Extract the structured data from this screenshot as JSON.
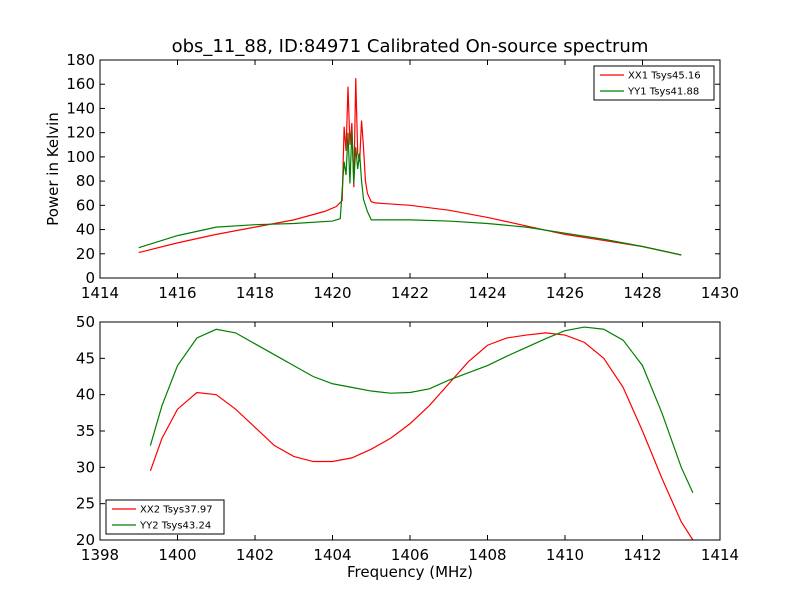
{
  "chart_data": [
    {
      "type": "line",
      "title": "obs_11_88, ID:84971 Calibrated On-source spectrum",
      "xlabel": "",
      "ylabel": "Power in Kelvin",
      "xlim": [
        1414,
        1430
      ],
      "ylim": [
        0,
        180
      ],
      "xticks": [
        1414,
        1416,
        1418,
        1420,
        1422,
        1424,
        1426,
        1428,
        1430
      ],
      "yticks": [
        0,
        20,
        40,
        60,
        80,
        100,
        120,
        140,
        160,
        180
      ],
      "grid": false,
      "legend_position": "top-right",
      "series": [
        {
          "name": "XX1 Tsys45.16",
          "color": "#ff0000",
          "x": [
            1415.0,
            1416.0,
            1417.0,
            1418.0,
            1419.0,
            1419.8,
            1420.1,
            1420.25,
            1420.3,
            1420.35,
            1420.4,
            1420.45,
            1420.5,
            1420.55,
            1420.6,
            1420.65,
            1420.7,
            1420.75,
            1420.8,
            1420.85,
            1420.9,
            1421.0,
            1421.1,
            1422.0,
            1423.0,
            1424.0,
            1425.0,
            1426.0,
            1427.0,
            1428.0,
            1429.0
          ],
          "values": [
            21,
            29,
            36,
            42,
            48,
            55,
            59,
            64,
            125,
            105,
            158,
            110,
            128,
            75,
            165,
            103,
            96,
            130,
            108,
            80,
            70,
            63,
            62,
            60,
            56,
            50,
            43,
            36,
            31,
            26,
            19
          ]
        },
        {
          "name": "YY1 Tsys41.88",
          "color": "#008000",
          "x": [
            1415.0,
            1416.0,
            1417.0,
            1418.0,
            1419.0,
            1420.0,
            1420.2,
            1420.3,
            1420.35,
            1420.4,
            1420.45,
            1420.5,
            1420.55,
            1420.6,
            1420.65,
            1420.7,
            1420.75,
            1420.8,
            1420.9,
            1421.0,
            1422.0,
            1423.0,
            1424.0,
            1425.0,
            1426.0,
            1427.0,
            1428.0,
            1429.0
          ],
          "values": [
            25,
            35,
            42,
            44,
            45,
            47,
            49,
            96,
            85,
            120,
            78,
            122,
            78,
            108,
            90,
            103,
            80,
            65,
            55,
            48,
            48,
            47,
            45,
            42,
            37,
            32,
            26,
            19
          ]
        }
      ]
    },
    {
      "type": "line",
      "title": "",
      "xlabel": "Frequency (MHz)",
      "ylabel": "",
      "xlim": [
        1398,
        1414
      ],
      "ylim": [
        20,
        50
      ],
      "xticks": [
        1398,
        1400,
        1402,
        1404,
        1406,
        1408,
        1410,
        1412,
        1414
      ],
      "yticks": [
        20,
        25,
        30,
        35,
        40,
        45,
        50
      ],
      "grid": false,
      "legend_position": "bottom-left",
      "series": [
        {
          "name": "XX2 Tsys37.97",
          "color": "#ff0000",
          "x": [
            1399.3,
            1399.6,
            1400.0,
            1400.5,
            1401.0,
            1401.5,
            1402.0,
            1402.5,
            1403.0,
            1403.5,
            1404.0,
            1404.5,
            1405.0,
            1405.5,
            1406.0,
            1406.5,
            1407.0,
            1407.5,
            1408.0,
            1408.5,
            1409.0,
            1409.5,
            1410.0,
            1410.5,
            1411.0,
            1411.5,
            1412.0,
            1412.5,
            1413.0,
            1413.3
          ],
          "values": [
            29.5,
            34,
            38,
            40.3,
            40,
            38,
            35.5,
            33,
            31.5,
            30.8,
            30.8,
            31.3,
            32.5,
            34,
            36,
            38.5,
            41.5,
            44.5,
            46.8,
            47.8,
            48.2,
            48.5,
            48.2,
            47.2,
            45,
            41,
            35,
            28.5,
            22.5,
            20
          ]
        },
        {
          "name": "YY2 Tsys43.24",
          "color": "#008000",
          "x": [
            1399.3,
            1399.6,
            1400.0,
            1400.5,
            1401.0,
            1401.5,
            1402.0,
            1402.5,
            1403.0,
            1403.5,
            1404.0,
            1404.5,
            1405.0,
            1405.5,
            1406.0,
            1406.5,
            1407.0,
            1407.5,
            1408.0,
            1408.5,
            1409.0,
            1409.5,
            1410.0,
            1410.5,
            1411.0,
            1411.5,
            1412.0,
            1412.5,
            1413.0,
            1413.3
          ],
          "values": [
            33,
            38.5,
            44,
            47.8,
            49,
            48.5,
            47,
            45.5,
            44,
            42.5,
            41.5,
            41,
            40.5,
            40.2,
            40.3,
            40.8,
            42,
            43,
            44,
            45.3,
            46.5,
            47.7,
            48.8,
            49.3,
            49,
            47.5,
            44,
            37.5,
            30,
            26.5
          ]
        }
      ]
    }
  ]
}
